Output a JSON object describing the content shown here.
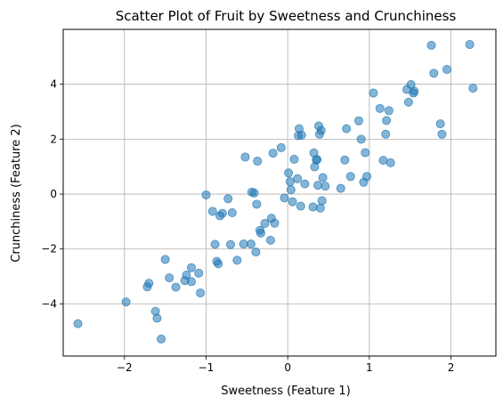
{
  "chart_data": {
    "type": "scatter",
    "title": "Scatter Plot of Fruit by Sweetness and Crunchiness",
    "xlabel": "Sweetness (Feature 1)",
    "ylabel": "Crunchiness (Feature 2)",
    "xlim": [
      -2.75,
      2.55
    ],
    "ylim": [
      -5.9,
      6.0
    ],
    "xticks": [
      -2,
      -1,
      0,
      1,
      2
    ],
    "xtick_labels": [
      "−2",
      "−1",
      "0",
      "1",
      "2"
    ],
    "yticks": [
      -4,
      -2,
      0,
      2,
      4
    ],
    "ytick_labels": [
      "−4",
      "−2",
      "0",
      "2",
      "4"
    ],
    "grid": true,
    "marker_color": "#1f77b4",
    "marker_alpha": 0.55,
    "x": [
      -2.57,
      -1.98,
      -1.72,
      -1.7,
      -1.62,
      -1.6,
      -1.55,
      -1.45,
      -1.5,
      -1.37,
      -1.26,
      -1.24,
      -1.18,
      -1.18,
      -1.09,
      -1.07,
      -1.0,
      -0.92,
      -0.89,
      -0.87,
      -0.85,
      -0.83,
      -0.8,
      -0.73,
      -0.7,
      -0.68,
      -0.62,
      -0.54,
      -0.52,
      -0.45,
      -0.44,
      -0.41,
      -0.39,
      -0.38,
      -0.37,
      -0.34,
      -0.33,
      -0.28,
      -0.21,
      -0.2,
      -0.18,
      -0.16,
      -0.08,
      -0.04,
      0.01,
      0.03,
      0.04,
      0.06,
      0.08,
      0.12,
      0.13,
      0.14,
      0.16,
      0.17,
      0.21,
      0.31,
      0.32,
      0.33,
      0.35,
      0.36,
      0.37,
      0.38,
      0.39,
      0.4,
      0.41,
      0.42,
      0.43,
      0.46,
      0.65,
      0.7,
      0.72,
      0.77,
      0.87,
      0.9,
      0.93,
      0.95,
      0.97,
      1.05,
      1.13,
      1.17,
      1.2,
      1.21,
      1.24,
      1.26,
      1.46,
      1.48,
      1.51,
      1.54,
      1.55,
      1.76,
      1.79,
      1.87,
      1.89,
      1.95,
      2.23,
      2.27
    ],
    "y": [
      -4.72,
      -3.93,
      -3.38,
      -3.25,
      -4.27,
      -4.52,
      -5.28,
      -3.05,
      -2.38,
      -3.39,
      -3.15,
      -2.95,
      -3.19,
      -2.68,
      -2.88,
      -3.6,
      -0.03,
      -0.63,
      -1.83,
      -2.45,
      -2.54,
      -0.79,
      -0.7,
      -0.17,
      -1.84,
      -0.68,
      -2.41,
      -1.82,
      1.35,
      -1.82,
      0.07,
      0.04,
      -2.11,
      -0.37,
      1.2,
      -1.32,
      -1.42,
      -1.07,
      -1.68,
      -0.88,
      1.49,
      -1.06,
      1.69,
      -0.14,
      0.77,
      0.45,
      0.16,
      -0.28,
      1.27,
      0.56,
      2.13,
      2.38,
      -0.44,
      2.15,
      0.37,
      -0.47,
      1.5,
      0.99,
      1.24,
      1.26,
      0.32,
      2.48,
      2.18,
      -0.51,
      2.32,
      -0.24,
      0.6,
      0.29,
      0.21,
      1.24,
      2.38,
      0.64,
      2.67,
      2.0,
      0.43,
      1.51,
      0.64,
      3.68,
      3.12,
      1.23,
      2.18,
      2.68,
      3.04,
      1.14,
      3.81,
      3.35,
      3.99,
      3.68,
      3.75,
      5.42,
      4.4,
      2.56,
      2.18,
      4.54,
      5.45,
      3.86
    ]
  }
}
